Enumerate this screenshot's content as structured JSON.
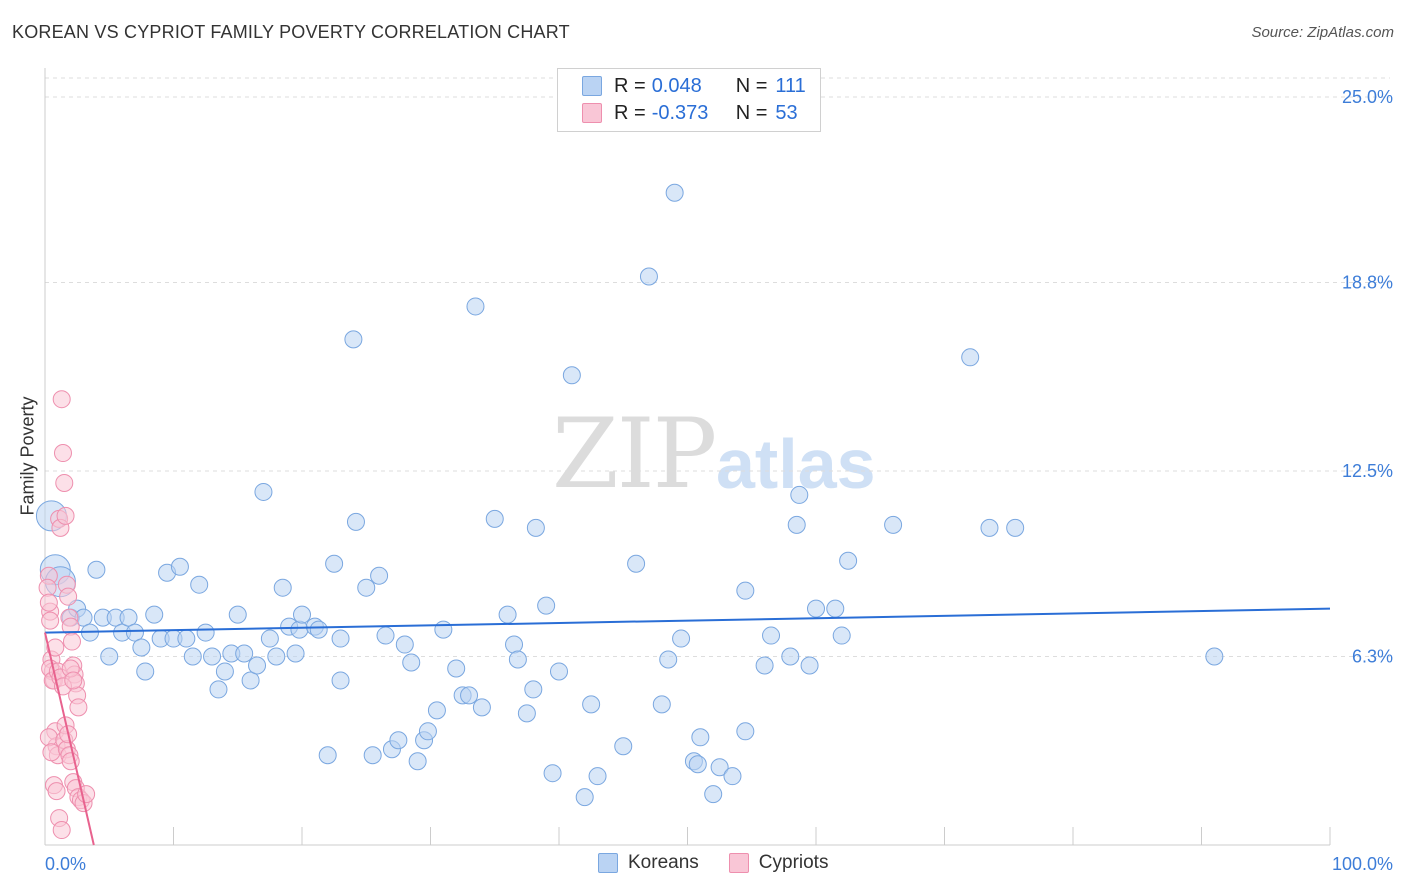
{
  "header": {
    "title": "KOREAN VS CYPRIOT FAMILY POVERTY CORRELATION CHART",
    "source": "Source: ZipAtlas.com"
  },
  "watermark": {
    "zip": "ZIP",
    "atlas": "atlas"
  },
  "legend": {
    "rows": [
      {
        "r_label": "R =",
        "r_value": "0.048",
        "n_label": "N =",
        "n_value": "111",
        "color": "#bad3f3"
      },
      {
        "r_label": "R =",
        "r_value": "-0.373",
        "n_label": "N =",
        "n_value": "53",
        "color": "#f9c6d6"
      }
    ]
  },
  "bottom_legend": [
    "Koreans",
    "Cypriots"
  ],
  "colors": {
    "blue_fill": "#bad3f3",
    "blue_stroke": "#7aa7e0",
    "blue_line": "#2a6ed6",
    "pink_fill": "#f9c6d6",
    "pink_stroke": "#ee8fae",
    "pink_line": "#e8628e",
    "tick_label": "#3d7dd8",
    "grid": "#dddddd"
  },
  "chart_data": {
    "type": "scatter",
    "ylabel": "Family Poverty",
    "xlim": [
      0,
      100
    ],
    "ylim": [
      0,
      25.0
    ],
    "x_tick_labels": [
      "0.0%",
      "100.0%"
    ],
    "y_ticks": [
      6.3,
      12.5,
      18.8,
      25.0
    ],
    "y_tick_labels": [
      "6.3%",
      "12.5%",
      "18.8%",
      "25.0%"
    ],
    "grid": "horizontal dashed",
    "series": [
      {
        "name": "Koreans",
        "trend": {
          "x": [
            0,
            100
          ],
          "y": [
            7.1,
            7.9
          ]
        },
        "points": [
          [
            0.5,
            11.0,
            "L"
          ],
          [
            0.8,
            9.2,
            "L"
          ],
          [
            1.2,
            8.8,
            "L"
          ],
          [
            2.0,
            7.6
          ],
          [
            2.5,
            7.9
          ],
          [
            3.0,
            7.6
          ],
          [
            3.5,
            7.1
          ],
          [
            4.0,
            9.2
          ],
          [
            4.5,
            7.6
          ],
          [
            5.0,
            6.3
          ],
          [
            5.5,
            7.6
          ],
          [
            6.0,
            7.1
          ],
          [
            6.5,
            7.6
          ],
          [
            7.0,
            7.1
          ],
          [
            7.5,
            6.6
          ],
          [
            7.8,
            5.8
          ],
          [
            8.5,
            7.7
          ],
          [
            9.0,
            6.9
          ],
          [
            9.5,
            9.1
          ],
          [
            10.0,
            6.9
          ],
          [
            10.5,
            9.3
          ],
          [
            11.0,
            6.9
          ],
          [
            11.5,
            6.3
          ],
          [
            12.0,
            8.7
          ],
          [
            12.5,
            7.1
          ],
          [
            13.0,
            6.3
          ],
          [
            13.5,
            5.2
          ],
          [
            14.0,
            5.8
          ],
          [
            14.5,
            6.4
          ],
          [
            15.0,
            7.7
          ],
          [
            15.5,
            6.4
          ],
          [
            16.0,
            5.5
          ],
          [
            16.5,
            6.0
          ],
          [
            17.0,
            11.8
          ],
          [
            17.5,
            6.9
          ],
          [
            18.0,
            6.3
          ],
          [
            18.5,
            8.6
          ],
          [
            19.0,
            7.3
          ],
          [
            19.5,
            6.4
          ],
          [
            19.8,
            7.2
          ],
          [
            20.0,
            7.7
          ],
          [
            21.0,
            7.3
          ],
          [
            21.3,
            7.2
          ],
          [
            22.0,
            3.0
          ],
          [
            22.5,
            9.4
          ],
          [
            23.0,
            6.9
          ],
          [
            23.0,
            5.5
          ],
          [
            24.0,
            16.9
          ],
          [
            24.2,
            10.8
          ],
          [
            25.0,
            8.6
          ],
          [
            25.5,
            3.0
          ],
          [
            26.0,
            9.0
          ],
          [
            26.5,
            7.0
          ],
          [
            27.0,
            3.2
          ],
          [
            27.5,
            3.5
          ],
          [
            28.0,
            6.7
          ],
          [
            28.5,
            6.1
          ],
          [
            29.0,
            2.8
          ],
          [
            29.5,
            3.5
          ],
          [
            29.8,
            3.8
          ],
          [
            30.5,
            4.5
          ],
          [
            31.0,
            7.2
          ],
          [
            32.0,
            5.9
          ],
          [
            32.5,
            5.0
          ],
          [
            33.0,
            5.0
          ],
          [
            33.5,
            18.0
          ],
          [
            34.0,
            4.6
          ],
          [
            35.0,
            10.9
          ],
          [
            36.0,
            7.7
          ],
          [
            36.5,
            6.7
          ],
          [
            36.8,
            6.2
          ],
          [
            37.5,
            4.4
          ],
          [
            38.0,
            5.2
          ],
          [
            38.2,
            10.6
          ],
          [
            39.0,
            8.0
          ],
          [
            39.5,
            2.4
          ],
          [
            40.0,
            5.8
          ],
          [
            41.0,
            15.7
          ],
          [
            42.0,
            1.6
          ],
          [
            42.5,
            4.7
          ],
          [
            43.0,
            2.3
          ],
          [
            45.0,
            3.3
          ],
          [
            46.0,
            9.4
          ],
          [
            47.0,
            19.0
          ],
          [
            48.0,
            4.7
          ],
          [
            48.5,
            6.2
          ],
          [
            49.0,
            21.8
          ],
          [
            49.5,
            6.9
          ],
          [
            50.5,
            2.8
          ],
          [
            50.8,
            2.7
          ],
          [
            51.0,
            3.6
          ],
          [
            52.0,
            1.7
          ],
          [
            52.5,
            2.6
          ],
          [
            53.5,
            2.3
          ],
          [
            54.5,
            3.8
          ],
          [
            54.5,
            8.5
          ],
          [
            56.0,
            6.0
          ],
          [
            56.5,
            7.0
          ],
          [
            58.0,
            6.3
          ],
          [
            58.5,
            10.7
          ],
          [
            58.7,
            11.7
          ],
          [
            59.5,
            6.0
          ],
          [
            60.0,
            7.9
          ],
          [
            61.5,
            7.9
          ],
          [
            62.0,
            7.0
          ],
          [
            62.5,
            9.5
          ],
          [
            66.0,
            10.7
          ],
          [
            72.0,
            16.3
          ],
          [
            73.5,
            10.6
          ],
          [
            75.5,
            10.6
          ],
          [
            91.0,
            6.3
          ]
        ]
      },
      {
        "name": "Cypriots",
        "trend": {
          "x": [
            0,
            3.8
          ],
          "y": [
            7.1,
            0.0
          ]
        },
        "points": [
          [
            0.3,
            9.0
          ],
          [
            0.4,
            7.8
          ],
          [
            0.5,
            6.2
          ],
          [
            0.6,
            5.8
          ],
          [
            0.7,
            5.5
          ],
          [
            0.8,
            3.8
          ],
          [
            0.9,
            3.3
          ],
          [
            1.0,
            3.0
          ],
          [
            1.1,
            10.9
          ],
          [
            1.2,
            10.6
          ],
          [
            1.3,
            14.9
          ],
          [
            1.4,
            13.1
          ],
          [
            1.5,
            12.1
          ],
          [
            1.6,
            11.0
          ],
          [
            1.7,
            8.7
          ],
          [
            1.8,
            8.3
          ],
          [
            1.9,
            7.6
          ],
          [
            2.0,
            7.3
          ],
          [
            2.1,
            6.8
          ],
          [
            2.2,
            6.0
          ],
          [
            2.3,
            5.7
          ],
          [
            2.4,
            5.4
          ],
          [
            2.5,
            5.0
          ],
          [
            2.6,
            4.6
          ],
          [
            0.3,
            3.6
          ],
          [
            0.5,
            3.1
          ],
          [
            0.7,
            2.0
          ],
          [
            0.9,
            1.8
          ],
          [
            1.1,
            0.9
          ],
          [
            1.3,
            0.5
          ],
          [
            1.5,
            3.5
          ],
          [
            1.7,
            3.2
          ],
          [
            1.9,
            3.0
          ],
          [
            2.0,
            2.8
          ],
          [
            2.2,
            2.1
          ],
          [
            2.4,
            1.9
          ],
          [
            2.6,
            1.6
          ],
          [
            2.8,
            1.5
          ],
          [
            3.0,
            1.4
          ],
          [
            3.2,
            1.7
          ],
          [
            0.4,
            5.9
          ],
          [
            0.6,
            5.5
          ],
          [
            0.8,
            6.6
          ],
          [
            1.0,
            5.8
          ],
          [
            1.2,
            5.6
          ],
          [
            1.4,
            5.3
          ],
          [
            1.6,
            4.0
          ],
          [
            1.8,
            3.7
          ],
          [
            2.0,
            5.9
          ],
          [
            2.2,
            5.5
          ],
          [
            0.2,
            8.6
          ],
          [
            0.3,
            8.1
          ],
          [
            0.4,
            7.5
          ]
        ]
      }
    ]
  }
}
